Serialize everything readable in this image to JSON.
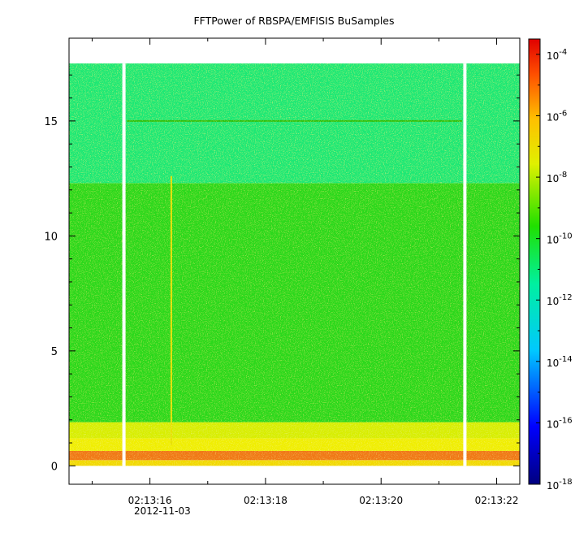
{
  "chart_data": {
    "type": "heatmap",
    "title": "FFTPower of RBSPA/EMFISIS  BuSamples",
    "xlabel": "",
    "ylabel": "",
    "x_ticks": [
      {
        "value": 16,
        "label": "02:13:16"
      },
      {
        "value": 18,
        "label": "02:13:18"
      },
      {
        "value": 20,
        "label": "02:13:20"
      },
      {
        "value": 22,
        "label": "02:13:22"
      }
    ],
    "x_minor": [
      15,
      17,
      19,
      21
    ],
    "x_sublabel": "2012-11-03",
    "xlim": [
      14.6,
      22.4
    ],
    "ylim": [
      -0.8,
      18.6
    ],
    "y_ticks": [
      0,
      5,
      10,
      15
    ],
    "data_extent": {
      "t_start": 14.6,
      "t_end": 22.4,
      "f_start": 0,
      "f_end": 17.5
    },
    "gaps": [
      15.55,
      21.45
    ],
    "bands": [
      {
        "f0": 0.0,
        "f1": 0.25,
        "color": "#f2d900"
      },
      {
        "f0": 0.25,
        "f1": 0.65,
        "color": "#f07818"
      },
      {
        "f0": 0.65,
        "f1": 1.2,
        "color": "#f0ee00"
      },
      {
        "f0": 1.2,
        "f1": 1.9,
        "color": "#d8ee00"
      },
      {
        "f0": 1.9,
        "f1": 12.3,
        "color": "#2cd81c"
      },
      {
        "f0": 12.3,
        "f1": 17.5,
        "color": "#1ce874"
      }
    ],
    "lines": [
      {
        "f": 15.0,
        "t0": 15.6,
        "t1": 21.4,
        "color": "#2cc00c"
      }
    ],
    "streaks": [
      {
        "t": 16.37,
        "f0": 0.9,
        "f1": 12.6,
        "color": "#e8e000"
      }
    ],
    "colorbar": {
      "scale": "log",
      "range_exp": [
        -18,
        -3.5
      ],
      "ticks": [
        {
          "exp": -4,
          "label": "10",
          "sup": "-4"
        },
        {
          "exp": -6,
          "label": "10",
          "sup": "-6"
        },
        {
          "exp": -8,
          "label": "10",
          "sup": "-8"
        },
        {
          "exp": -10,
          "label": "10",
          "sup": "-10"
        },
        {
          "exp": -12,
          "label": "10",
          "sup": "-12"
        },
        {
          "exp": -14,
          "label": "10",
          "sup": "-14"
        },
        {
          "exp": -16,
          "label": "10",
          "sup": "-16"
        },
        {
          "exp": -18,
          "label": "10",
          "sup": "-18"
        }
      ]
    },
    "grid": false,
    "legend": "none"
  }
}
